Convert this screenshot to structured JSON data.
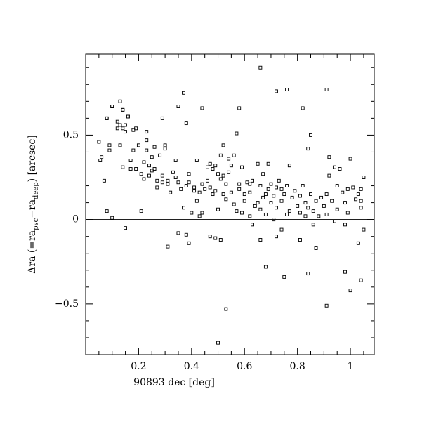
{
  "chart_data": {
    "type": "scatter",
    "xlabel": "90893 dec [deg]",
    "ylabel_parts": [
      "Δra (=ra",
      "psc",
      "−ra",
      "deep",
      ") [arcsec]"
    ],
    "xlim": [
      0,
      1.09
    ],
    "ylim": [
      -0.8,
      0.98
    ],
    "xticks": [
      0.2,
      0.4,
      0.6,
      0.8,
      1
    ],
    "yticks": [
      {
        "value": -0.5,
        "label": "−0.5"
      },
      0,
      0.5
    ],
    "xminorticks": [
      0.05,
      0.1,
      0.15,
      0.25,
      0.3,
      0.35,
      0.45,
      0.5,
      0.55,
      0.65,
      0.7,
      0.75,
      0.85,
      0.9,
      0.95,
      1.05
    ],
    "yminorticks": [
      -0.7,
      -0.6,
      -0.4,
      -0.3,
      -0.2,
      -0.1,
      0.1,
      0.2,
      0.3,
      0.4,
      0.6,
      0.7,
      0.8,
      0.9
    ],
    "hline": 0,
    "color": "#000000",
    "x": [
      0.05,
      0.055,
      0.06,
      0.07,
      0.08,
      0.08,
      0.09,
      0.09,
      0.1,
      0.1,
      0.12,
      0.12,
      0.13,
      0.13,
      0.13,
      0.14,
      0.14,
      0.15,
      0.15,
      0.14,
      0.16,
      0.17,
      0.17,
      0.18,
      0.18,
      0.19,
      0.19,
      0.2,
      0.21,
      0.22,
      0.22,
      0.23,
      0.23,
      0.23,
      0.24,
      0.24,
      0.25,
      0.25,
      0.26,
      0.26,
      0.27,
      0.27,
      0.28,
      0.29,
      0.29,
      0.3,
      0.3,
      0.31,
      0.31,
      0.32,
      0.33,
      0.34,
      0.34,
      0.35,
      0.36,
      0.37,
      0.38,
      0.39,
      0.39,
      0.4,
      0.41,
      0.41,
      0.42,
      0.42,
      0.43,
      0.43,
      0.44,
      0.45,
      0.46,
      0.46,
      0.47,
      0.47,
      0.48,
      0.48,
      0.49,
      0.49,
      0.5,
      0.5,
      0.51,
      0.51,
      0.52,
      0.52,
      0.52,
      0.53,
      0.53,
      0.54,
      0.54,
      0.55,
      0.55,
      0.56,
      0.56,
      0.57,
      0.58,
      0.58,
      0.59,
      0.6,
      0.6,
      0.61,
      0.62,
      0.62,
      0.63,
      0.64,
      0.65,
      0.65,
      0.66,
      0.66,
      0.67,
      0.67,
      0.68,
      0.68,
      0.69,
      0.69,
      0.7,
      0.7,
      0.71,
      0.72,
      0.72,
      0.73,
      0.74,
      0.74,
      0.75,
      0.76,
      0.76,
      0.77,
      0.78,
      0.79,
      0.8,
      0.81,
      0.81,
      0.82,
      0.83,
      0.84,
      0.84,
      0.85,
      0.86,
      0.87,
      0.88,
      0.89,
      0.9,
      0.91,
      0.91,
      0.92,
      0.92,
      0.93,
      0.94,
      0.95,
      0.95,
      0.96,
      0.97,
      0.98,
      0.99,
      0.99,
      1.0,
      1.01,
      1.02,
      1.03,
      1.04,
      1.04,
      1.05,
      0.77,
      0.66,
      0.72,
      0.76,
      0.91,
      0.37,
      0.13,
      0.35,
      0.44,
      0.58,
      0.82,
      0.1,
      0.08,
      0.16,
      0.29,
      0.38,
      0.85,
      0.57,
      0.14,
      0.5,
      0.53,
      0.91,
      1.0,
      1.04,
      0.84,
      0.98,
      0.75,
      0.68,
      0.31,
      0.39,
      0.35,
      0.38,
      0.15,
      0.47,
      0.49,
      0.51,
      0.66,
      0.72,
      0.81,
      0.87,
      1.03,
      1.05,
      0.98,
      0.63,
      0.74,
      0.86,
      0.94,
      0.21,
      0.44,
      0.59,
      0.62,
      0.71,
      0.83,
      1.04
    ],
    "values": [
      0.46,
      0.35,
      0.37,
      0.23,
      0.05,
      0.6,
      0.44,
      0.41,
      0.67,
      0.01,
      0.58,
      0.54,
      0.7,
      0.56,
      0.44,
      0.54,
      0.65,
      0.52,
      0.56,
      0.31,
      0.61,
      0.35,
      0.3,
      0.53,
      0.41,
      0.54,
      0.3,
      0.44,
      0.27,
      0.34,
      0.24,
      0.47,
      0.52,
      0.41,
      0.32,
      0.26,
      0.29,
      0.37,
      0.3,
      0.43,
      0.23,
      0.19,
      0.38,
      0.26,
      0.22,
      0.44,
      0.42,
      0.21,
      0.23,
      0.16,
      0.28,
      0.25,
      0.35,
      0.22,
      0.18,
      0.07,
      0.2,
      0.27,
      0.22,
      0.04,
      0.19,
      0.17,
      0.35,
      0.11,
      0.16,
      0.02,
      0.21,
      0.18,
      0.23,
      0.31,
      0.33,
      0.19,
      0.15,
      0.3,
      0.17,
      0.32,
      0.27,
      0.06,
      0.38,
      0.24,
      0.44,
      0.26,
      0.15,
      0.12,
      0.21,
      0.28,
      0.36,
      0.32,
      0.16,
      0.38,
      0.09,
      0.05,
      0.18,
      0.21,
      0.31,
      0.15,
      0.11,
      0.22,
      0.16,
      0.21,
      0.23,
      0.08,
      0.1,
      0.33,
      0.06,
      0.2,
      0.13,
      0.27,
      0.15,
      0.03,
      0.18,
      0.33,
      0.1,
      0.21,
      0.14,
      0.19,
      0.07,
      0.23,
      0.11,
      0.18,
      0.15,
      0.2,
      0.03,
      0.05,
      0.13,
      0.17,
      0.08,
      0.14,
      0.04,
      0.2,
      0.1,
      0.42,
      0.07,
      0.15,
      0.05,
      0.11,
      0.02,
      0.13,
      0.08,
      0.15,
      0.03,
      0.37,
      0.26,
      0.11,
      0.31,
      0.2,
      0.06,
      0.3,
      0.16,
      0.1,
      0.18,
      0.04,
      0.36,
      0.19,
      0.12,
      0.15,
      0.11,
      0.18,
      0.25,
      0.32,
      0.9,
      0.76,
      0.77,
      0.77,
      0.75,
      0.7,
      0.67,
      0.66,
      0.66,
      0.66,
      0.67,
      0.6,
      0.61,
      0.6,
      0.57,
      0.5,
      0.51,
      0.65,
      -0.73,
      -0.53,
      -0.51,
      -0.42,
      -0.36,
      -0.32,
      -0.31,
      -0.34,
      -0.28,
      -0.16,
      -0.14,
      -0.08,
      -0.09,
      -0.05,
      -0.1,
      -0.11,
      -0.12,
      -0.12,
      -0.1,
      -0.12,
      -0.17,
      -0.14,
      -0.06,
      -0.03,
      -0.03,
      -0.06,
      -0.03,
      -0.01,
      0.05,
      0.04,
      0.04,
      0.02,
      0.0,
      0.02,
      0.07
    ]
  }
}
